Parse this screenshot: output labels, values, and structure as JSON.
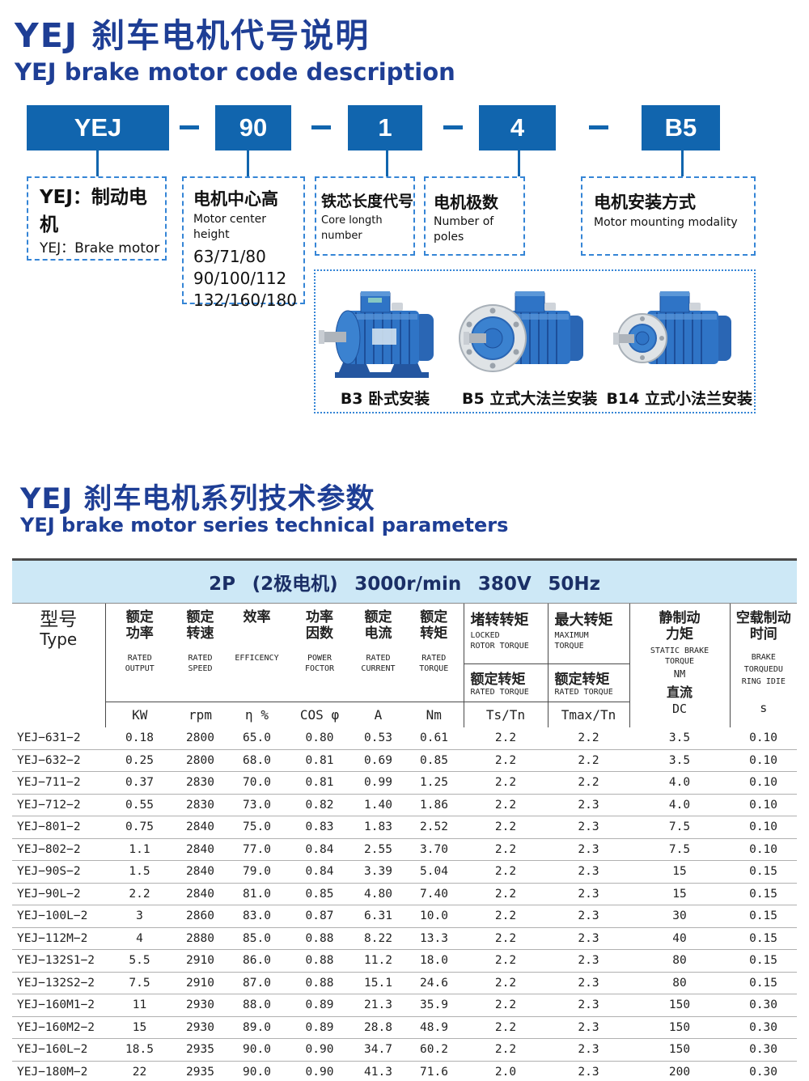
{
  "section1": {
    "title_cn": "YEJ 刹车电机代号说明",
    "title_en": "YEJ brake motor code description"
  },
  "code": {
    "boxes": [
      "YEJ",
      "90",
      "1",
      "4",
      "B5"
    ]
  },
  "explain": {
    "box1": {
      "cn": "YEJ：制动电机",
      "en": "YEJ：Brake motor"
    },
    "box2": {
      "cn": "电机中心高",
      "en": "Motor center height",
      "values": "63/71/80\n90/100/112\n132/160/180"
    },
    "box3": {
      "cn": "铁芯长度代号",
      "en": "Core longth number"
    },
    "box4": {
      "cn": "电机极数",
      "en": "Number of poles"
    },
    "box5": {
      "cn": "电机安装方式",
      "en": "Motor mounting modality"
    }
  },
  "mounts": {
    "b3": "B3 卧式安装",
    "b5": "B5 立式大法兰安装",
    "b14": "B14 立式小法兰安装"
  },
  "section2": {
    "title_cn": "YEJ 刹车电机系列技术参数",
    "title_en": "YEJ brake motor series technical parameters"
  },
  "table": {
    "band": "2P (2极电机) 3000r/min 380V 50Hz",
    "type_col": {
      "cn": "型号",
      "en": "Type"
    },
    "main_cols": [
      {
        "cn": "额定\n功率",
        "en": "RATED\nOUTPUT",
        "unit": "KW"
      },
      {
        "cn": "额定\n转速",
        "en": "RATED\nSPEED",
        "unit": "rpm"
      },
      {
        "cn": "效率",
        "en": "EFFICENCY",
        "unit": "η %"
      },
      {
        "cn": "功率\n因数",
        "en": "POWER\nFOCTOR",
        "unit": "COS φ"
      },
      {
        "cn": "额定\n电流",
        "en": "RATED\nCURRENT",
        "unit": "A"
      },
      {
        "cn": "额定\n转矩",
        "en": "RATED\nTORQUE",
        "unit": "Nm"
      }
    ],
    "torque_cols": [
      {
        "cn": "堵转转矩",
        "en": "LOCKED\nROTOR TORQUE",
        "sub_cn": "额定转矩",
        "sub_en": "RATED TORQUE",
        "unit": "Ts/Tn"
      },
      {
        "cn": "最大转矩",
        "en": "MAXIMUM\nTORQUE",
        "sub_cn": "额定转矩",
        "sub_en": "RATED TORQUE",
        "unit": "Tmax/Tn"
      }
    ],
    "static_brake_col": {
      "cn": "静制动\n力矩",
      "en": "STATIC BRAKE\nTORQUE",
      "nm": "NM",
      "dc_cn": "直流",
      "unit": "DC"
    },
    "brake_time_col": {
      "cn": "空载制动\n时间",
      "en": "BRAKE\nTORQUEDU\nRING IDIE",
      "unit": "s"
    },
    "rows": [
      [
        "YEJ−631−2",
        "0.18",
        "2800",
        "65.0",
        "0.80",
        "0.53",
        "0.61",
        "2.2",
        "2.2",
        "3.5",
        "0.10"
      ],
      [
        "YEJ−632−2",
        "0.25",
        "2800",
        "68.0",
        "0.81",
        "0.69",
        "0.85",
        "2.2",
        "2.2",
        "3.5",
        "0.10"
      ],
      [
        "YEJ−711−2",
        "0.37",
        "2830",
        "70.0",
        "0.81",
        "0.99",
        "1.25",
        "2.2",
        "2.2",
        "4.0",
        "0.10"
      ],
      [
        "YEJ−712−2",
        "0.55",
        "2830",
        "73.0",
        "0.82",
        "1.40",
        "1.86",
        "2.2",
        "2.3",
        "4.0",
        "0.10"
      ],
      [
        "YEJ−801−2",
        "0.75",
        "2840",
        "75.0",
        "0.83",
        "1.83",
        "2.52",
        "2.2",
        "2.3",
        "7.5",
        "0.10"
      ],
      [
        "YEJ−802−2",
        "1.1",
        "2840",
        "77.0",
        "0.84",
        "2.55",
        "3.70",
        "2.2",
        "2.3",
        "7.5",
        "0.10"
      ],
      [
        "YEJ−90S−2",
        "1.5",
        "2840",
        "79.0",
        "0.84",
        "3.39",
        "5.04",
        "2.2",
        "2.3",
        "15",
        "0.15"
      ],
      [
        "YEJ−90L−2",
        "2.2",
        "2840",
        "81.0",
        "0.85",
        "4.80",
        "7.40",
        "2.2",
        "2.3",
        "15",
        "0.15"
      ],
      [
        "YEJ−100L−2",
        "3",
        "2860",
        "83.0",
        "0.87",
        "6.31",
        "10.0",
        "2.2",
        "2.3",
        "30",
        "0.15"
      ],
      [
        "YEJ−112M−2",
        "4",
        "2880",
        "85.0",
        "0.88",
        "8.22",
        "13.3",
        "2.2",
        "2.3",
        "40",
        "0.15"
      ],
      [
        "YEJ−132S1−2",
        "5.5",
        "2910",
        "86.0",
        "0.88",
        "11.2",
        "18.0",
        "2.2",
        "2.3",
        "80",
        "0.15"
      ],
      [
        "YEJ−132S2−2",
        "7.5",
        "2910",
        "87.0",
        "0.88",
        "15.1",
        "24.6",
        "2.2",
        "2.3",
        "80",
        "0.15"
      ],
      [
        "YEJ−160M1−2",
        "11",
        "2930",
        "88.0",
        "0.89",
        "21.3",
        "35.9",
        "2.2",
        "2.3",
        "150",
        "0.30"
      ],
      [
        "YEJ−160M2−2",
        "15",
        "2930",
        "89.0",
        "0.89",
        "28.8",
        "48.9",
        "2.2",
        "2.3",
        "150",
        "0.30"
      ],
      [
        "YEJ−160L−2",
        "18.5",
        "2935",
        "90.0",
        "0.90",
        "34.7",
        "60.2",
        "2.2",
        "2.3",
        "150",
        "0.30"
      ],
      [
        "YEJ−180M−2",
        "22",
        "2935",
        "90.0",
        "0.90",
        "41.3",
        "71.6",
        "2.0",
        "2.3",
        "200",
        "0.30"
      ]
    ]
  },
  "colors": {
    "title_navy": "#1e3e95",
    "code_box_blue": "#1165ae",
    "dashed_border_blue": "#3585d6",
    "band_background": "#cde8f6"
  }
}
